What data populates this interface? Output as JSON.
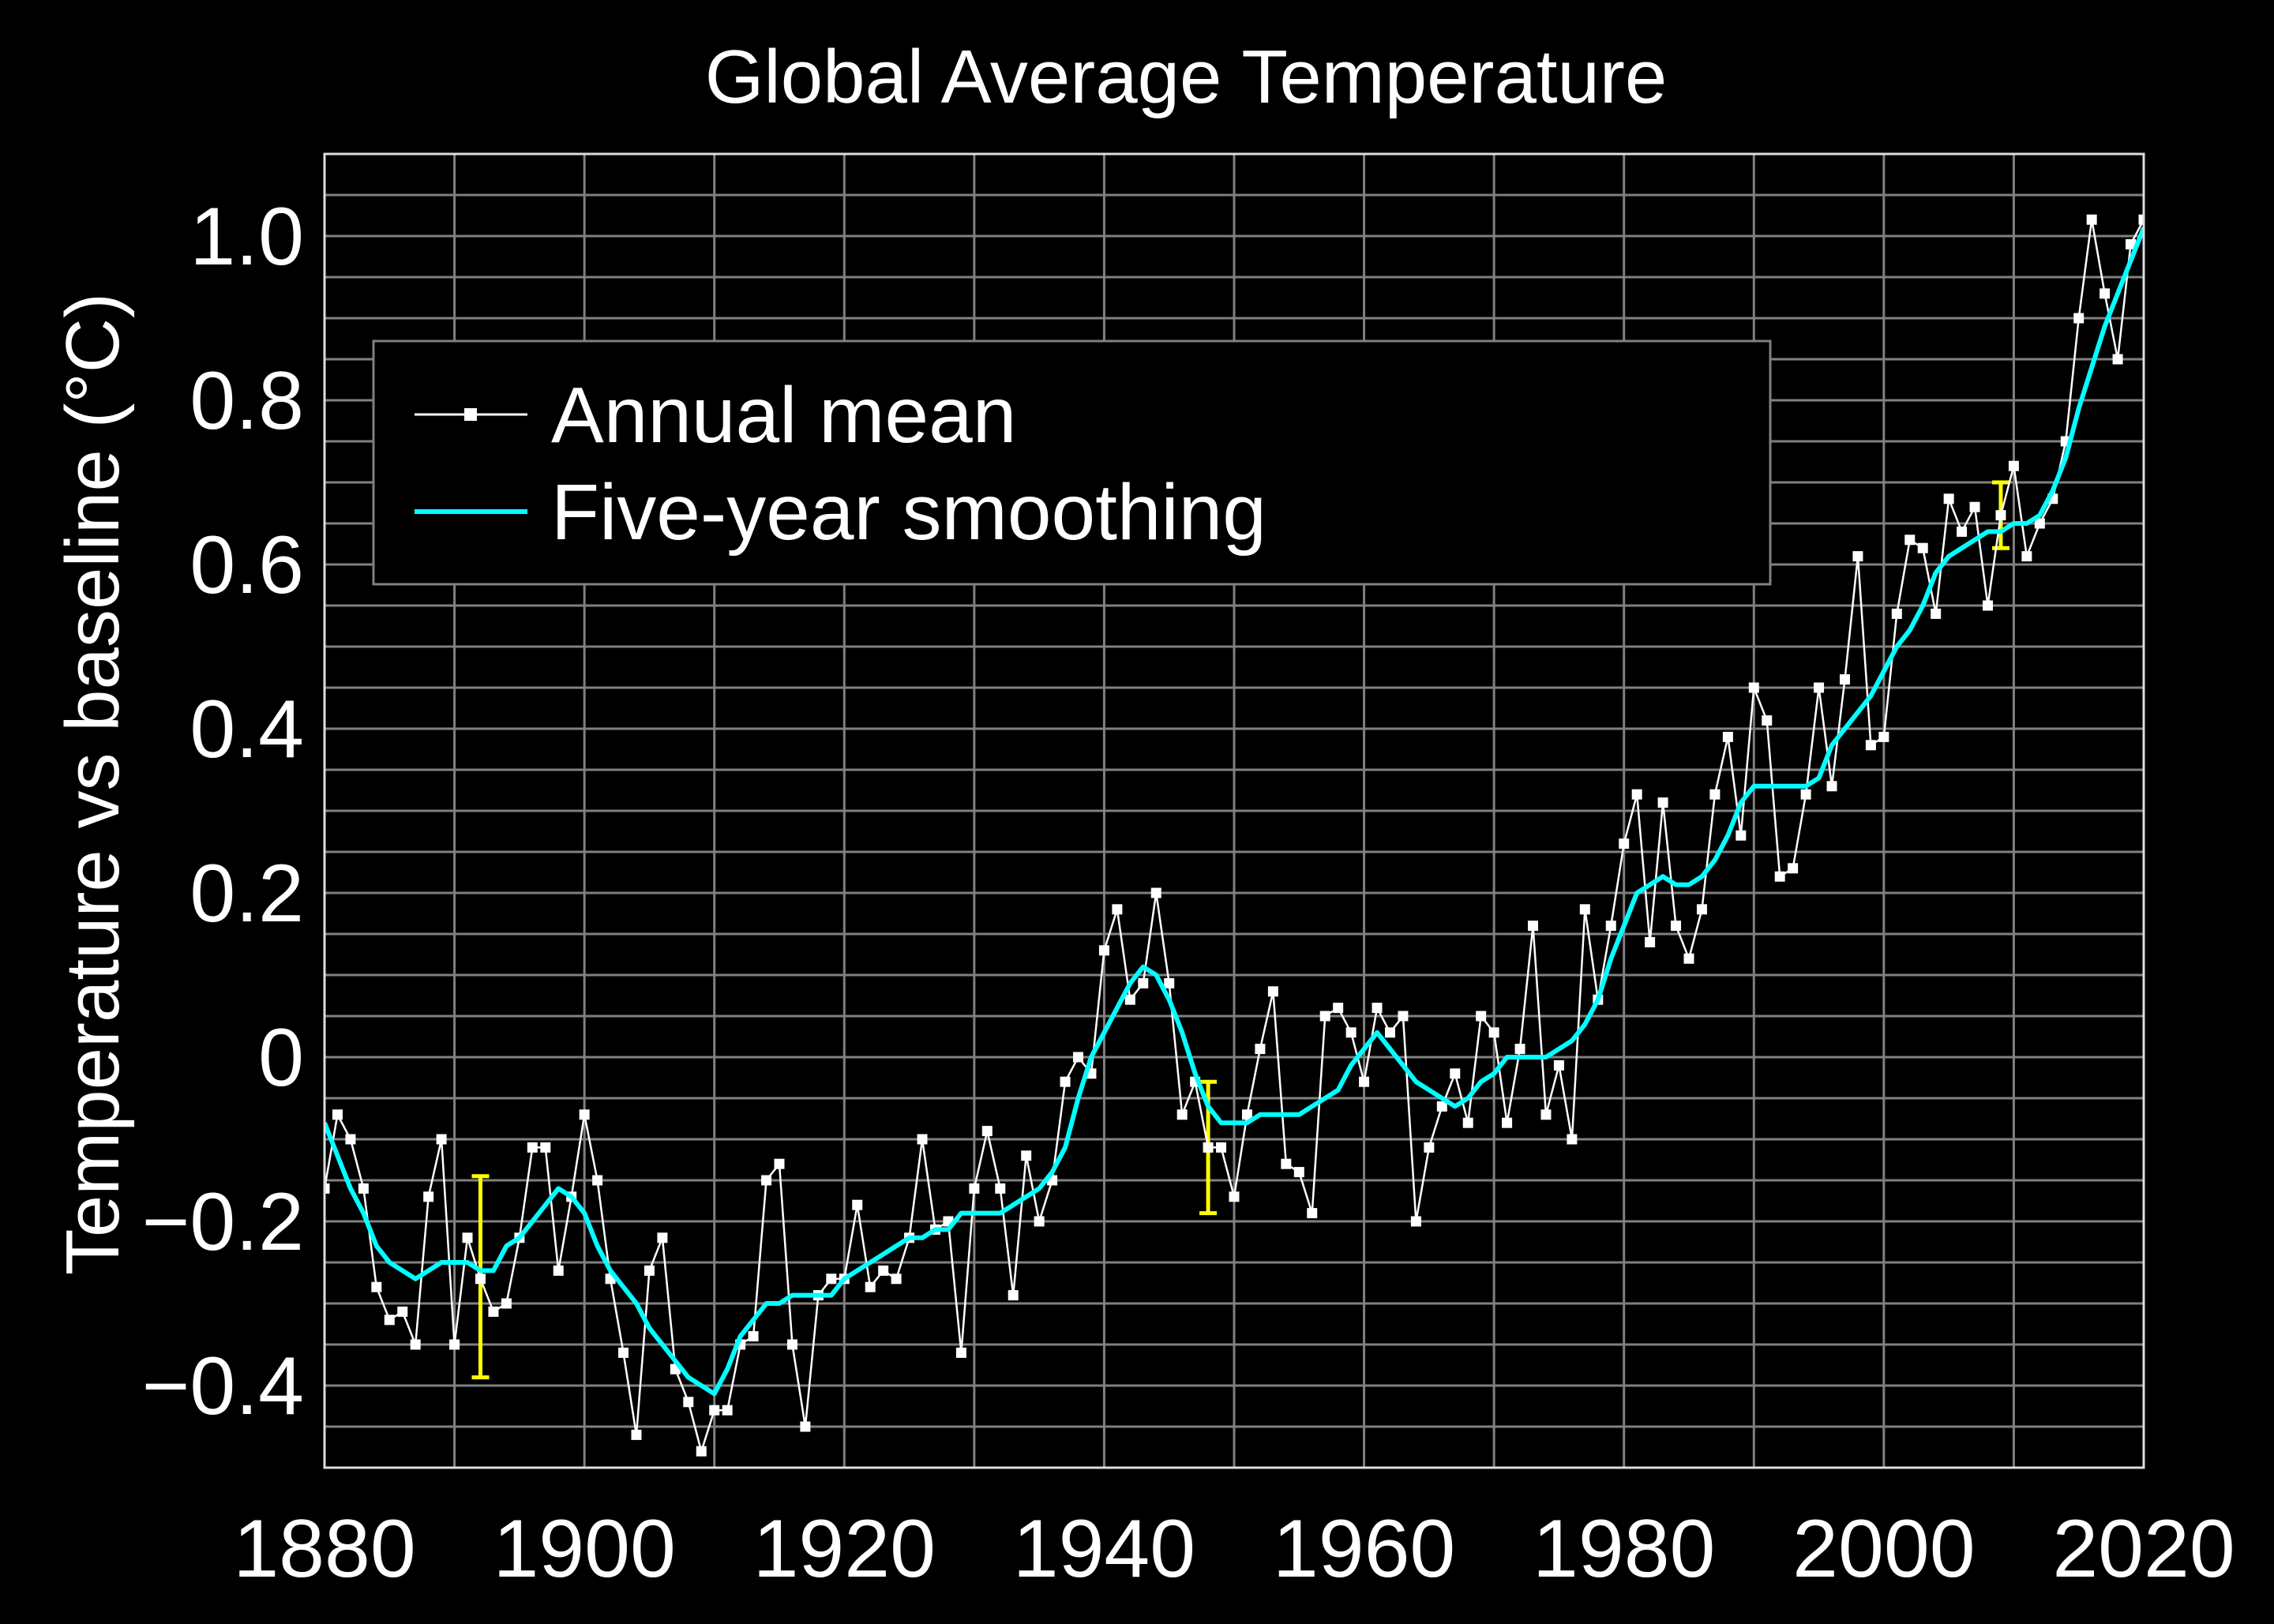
{
  "chart_data": {
    "type": "line",
    "title": "Global Average Temperature",
    "xlabel": "",
    "ylabel": "Temperature vs baseline (°C)",
    "xlim": [
      1880,
      2020
    ],
    "ylim": [
      -0.5,
      1.1
    ],
    "grid": true,
    "legend_position": "top-left",
    "x_ticks": [
      1880,
      1900,
      1920,
      1940,
      1960,
      1980,
      2000,
      2020
    ],
    "x_tick_labels": [
      "1880",
      "1900",
      "1920",
      "1940",
      "1960",
      "1980",
      "2000",
      "2020"
    ],
    "y_ticks": [
      -0.4,
      -0.2,
      0,
      0.2,
      0.4,
      0.6,
      0.8,
      1.0
    ],
    "y_tick_labels": [
      "−0.4",
      "−0.2",
      "0",
      "0.2",
      "0.4",
      "0.6",
      "0.8",
      "1.0"
    ],
    "colors": {
      "background": "#000000",
      "grid": "#808080",
      "annual": "#ffffff",
      "smooth": "#00ffff",
      "error": "#ffff00"
    },
    "x": [
      1880,
      1881,
      1882,
      1883,
      1884,
      1885,
      1886,
      1887,
      1888,
      1889,
      1890,
      1891,
      1892,
      1893,
      1894,
      1895,
      1896,
      1897,
      1898,
      1899,
      1900,
      1901,
      1902,
      1903,
      1904,
      1905,
      1906,
      1907,
      1908,
      1909,
      1910,
      1911,
      1912,
      1913,
      1914,
      1915,
      1916,
      1917,
      1918,
      1919,
      1920,
      1921,
      1922,
      1923,
      1924,
      1925,
      1926,
      1927,
      1928,
      1929,
      1930,
      1931,
      1932,
      1933,
      1934,
      1935,
      1936,
      1937,
      1938,
      1939,
      1940,
      1941,
      1942,
      1943,
      1944,
      1945,
      1946,
      1947,
      1948,
      1949,
      1950,
      1951,
      1952,
      1953,
      1954,
      1955,
      1956,
      1957,
      1958,
      1959,
      1960,
      1961,
      1962,
      1963,
      1964,
      1965,
      1966,
      1967,
      1968,
      1969,
      1970,
      1971,
      1972,
      1973,
      1974,
      1975,
      1976,
      1977,
      1978,
      1979,
      1980,
      1981,
      1982,
      1983,
      1984,
      1985,
      1986,
      1987,
      1988,
      1989,
      1990,
      1991,
      1992,
      1993,
      1994,
      1995,
      1996,
      1997,
      1998,
      1999,
      2000,
      2001,
      2002,
      2003,
      2004,
      2005,
      2006,
      2007,
      2008,
      2009,
      2010,
      2011,
      2012,
      2013,
      2014,
      2015,
      2016,
      2017,
      2018,
      2019,
      2020
    ],
    "series": [
      {
        "name": "Annual mean",
        "values": [
          -0.16,
          -0.07,
          -0.1,
          -0.16,
          -0.28,
          -0.32,
          -0.31,
          -0.35,
          -0.17,
          -0.1,
          -0.35,
          -0.22,
          -0.27,
          -0.31,
          -0.3,
          -0.22,
          -0.11,
          -0.11,
          -0.26,
          -0.17,
          -0.07,
          -0.15,
          -0.27,
          -0.36,
          -0.46,
          -0.26,
          -0.22,
          -0.38,
          -0.42,
          -0.48,
          -0.43,
          -0.43,
          -0.35,
          -0.34,
          -0.15,
          -0.13,
          -0.35,
          -0.45,
          -0.29,
          -0.27,
          -0.27,
          -0.18,
          -0.28,
          -0.26,
          -0.27,
          -0.22,
          -0.1,
          -0.21,
          -0.2,
          -0.36,
          -0.16,
          -0.09,
          -0.16,
          -0.29,
          -0.12,
          -0.2,
          -0.15,
          -0.03,
          0.0,
          -0.02,
          0.13,
          0.18,
          0.07,
          0.09,
          0.2,
          0.09,
          -0.07,
          -0.03,
          -0.11,
          -0.11,
          -0.17,
          -0.07,
          0.01,
          0.08,
          -0.13,
          -0.14,
          -0.19,
          0.05,
          0.06,
          0.03,
          -0.03,
          0.06,
          0.03,
          0.05,
          -0.2,
          -0.11,
          -0.06,
          -0.02,
          -0.08,
          0.05,
          0.03,
          -0.08,
          0.01,
          0.16,
          -0.07,
          -0.01,
          -0.1,
          0.18,
          0.07,
          0.16,
          0.26,
          0.32,
          0.14,
          0.31,
          0.16,
          0.12,
          0.18,
          0.32,
          0.39,
          0.27,
          0.45,
          0.41,
          0.22,
          0.23,
          0.32,
          0.45,
          0.33,
          0.46,
          0.61,
          0.38,
          0.39,
          0.54,
          0.63,
          0.62,
          0.54,
          0.68,
          0.64,
          0.67,
          0.55,
          0.66,
          0.72,
          0.61,
          0.65,
          0.68,
          0.75,
          0.9,
          1.02,
          0.93,
          0.85,
          0.99,
          1.02
        ]
      },
      {
        "name": "Five-year smoothing",
        "values": [
          -0.08,
          -0.12,
          -0.16,
          -0.19,
          -0.23,
          -0.25,
          -0.26,
          -0.27,
          -0.26,
          -0.25,
          -0.25,
          -0.25,
          -0.26,
          -0.26,
          -0.23,
          -0.22,
          -0.2,
          -0.18,
          -0.16,
          -0.17,
          -0.19,
          -0.23,
          -0.26,
          -0.28,
          -0.3,
          -0.33,
          -0.35,
          -0.37,
          -0.39,
          -0.4,
          -0.41,
          -0.38,
          -0.34,
          -0.32,
          -0.3,
          -0.3,
          -0.29,
          -0.29,
          -0.29,
          -0.29,
          -0.27,
          -0.26,
          -0.25,
          -0.24,
          -0.23,
          -0.22,
          -0.22,
          -0.21,
          -0.21,
          -0.19,
          -0.19,
          -0.19,
          -0.19,
          -0.18,
          -0.17,
          -0.16,
          -0.14,
          -0.11,
          -0.05,
          0.0,
          0.03,
          0.06,
          0.09,
          0.11,
          0.1,
          0.07,
          0.03,
          -0.02,
          -0.06,
          -0.08,
          -0.08,
          -0.08,
          -0.07,
          -0.07,
          -0.07,
          -0.07,
          -0.06,
          -0.05,
          -0.04,
          -0.01,
          0.01,
          0.03,
          0.01,
          -0.01,
          -0.03,
          -0.04,
          -0.05,
          -0.06,
          -0.05,
          -0.03,
          -0.02,
          0.0,
          0.0,
          0.0,
          0.0,
          0.01,
          0.02,
          0.04,
          0.07,
          0.12,
          0.16,
          0.2,
          0.21,
          0.22,
          0.21,
          0.21,
          0.22,
          0.24,
          0.27,
          0.31,
          0.33,
          0.33,
          0.33,
          0.33,
          0.33,
          0.34,
          0.38,
          0.4,
          0.42,
          0.44,
          0.47,
          0.5,
          0.52,
          0.55,
          0.59,
          0.61,
          0.62,
          0.63,
          0.64,
          0.64,
          0.65,
          0.65,
          0.66,
          0.69,
          0.73,
          0.79,
          0.84,
          0.89,
          0.93,
          0.97,
          1.01
        ]
      }
    ],
    "error_bars": [
      {
        "x": 1892,
        "y": -0.27,
        "low": -0.39,
        "high": -0.145
      },
      {
        "x": 1948,
        "y": -0.11,
        "low": -0.19,
        "high": -0.03
      },
      {
        "x": 2009,
        "y": 0.66,
        "low": 0.62,
        "high": 0.7
      }
    ]
  }
}
